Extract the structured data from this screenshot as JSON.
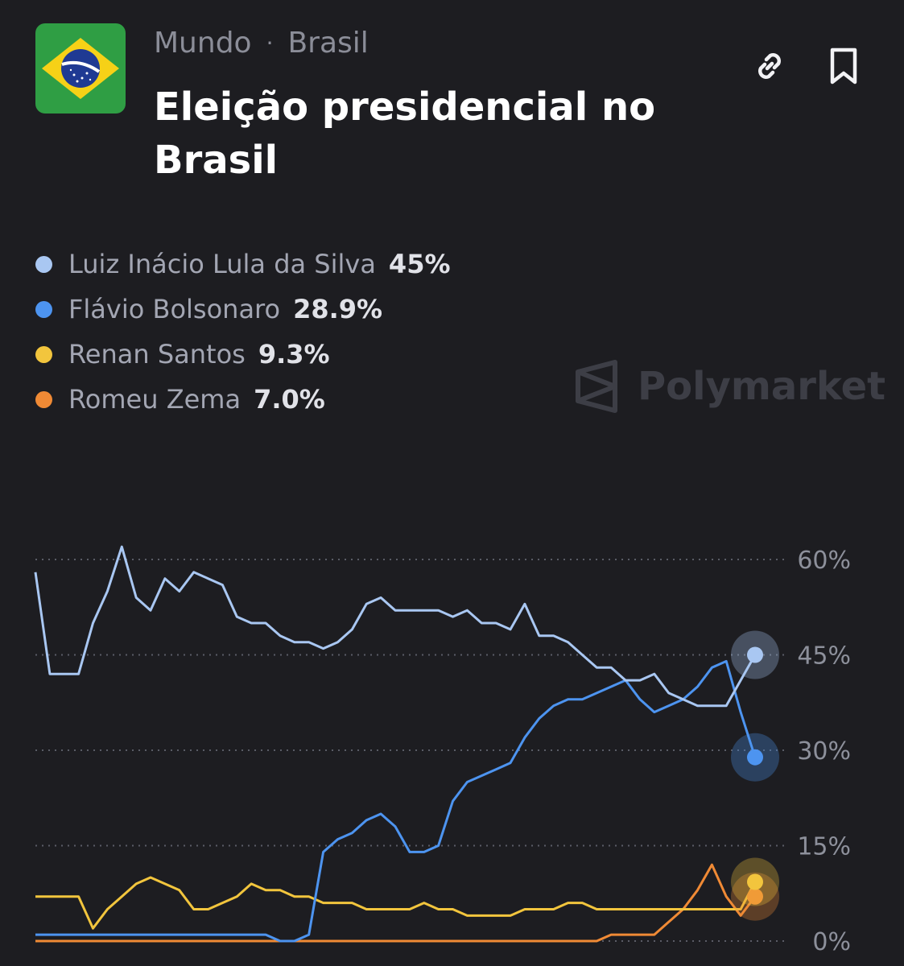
{
  "header": {
    "breadcrumb": [
      "Mundo",
      "Brasil"
    ],
    "breadcrumb_separator": "·",
    "title": "Eleição presidencial no Brasil",
    "flag_icon": "brazil-flag-icon",
    "link_icon": "link-icon",
    "bookmark_icon": "bookmark-icon"
  },
  "legend": [
    {
      "name": "Luiz Inácio Lula da Silva",
      "value": "45%",
      "color": "#a9c7f2"
    },
    {
      "name": "Flávio Bolsonaro",
      "value": "28.9%",
      "color": "#4d94f0"
    },
    {
      "name": "Renan Santos",
      "value": "9.3%",
      "color": "#f2c53d"
    },
    {
      "name": "Romeu Zema",
      "value": "7.0%",
      "color": "#f08a35"
    }
  ],
  "watermark": {
    "text": "Polymarket",
    "icon": "polymarket-logo-icon"
  },
  "chart_data": {
    "type": "line",
    "x": [
      0,
      2,
      4,
      6,
      8,
      10,
      12,
      14,
      16,
      18,
      20,
      22,
      24,
      26,
      28,
      30,
      32,
      34,
      36,
      38,
      40,
      42,
      44,
      46,
      48,
      50,
      52,
      54,
      56,
      58,
      60,
      62,
      64,
      66,
      68,
      70,
      72,
      74,
      76,
      78,
      80,
      82,
      84,
      86,
      88,
      90,
      92,
      94,
      96,
      98,
      100
    ],
    "yticks": [
      "0%",
      "15%",
      "30%",
      "45%",
      "60%"
    ],
    "ytick_values": [
      0,
      15,
      30,
      45,
      60
    ],
    "ylim": [
      0,
      60
    ],
    "grid": "horizontal-dotted",
    "series": [
      {
        "name": "Luiz Inácio Lula da Silva",
        "color": "#a9c7f2",
        "values": [
          58,
          42,
          42,
          42,
          50,
          55,
          62,
          54,
          52,
          57,
          55,
          58,
          57,
          56,
          51,
          50,
          50,
          48,
          47,
          47,
          46,
          47,
          49,
          53,
          54,
          52,
          52,
          52,
          52,
          51,
          52,
          50,
          50,
          49,
          53,
          48,
          48,
          47,
          45,
          43,
          43,
          41,
          41,
          42,
          39,
          38,
          37,
          37,
          37,
          41,
          45
        ]
      },
      {
        "name": "Flávio Bolsonaro",
        "color": "#4d94f0",
        "values": [
          0.5,
          0.5,
          0.5,
          0.5,
          0.5,
          0.5,
          0.5,
          0.5,
          0.5,
          0.5,
          0.5,
          0.5,
          0.5,
          0.5,
          0.5,
          0.5,
          0.5,
          0.5,
          0.5,
          0.5,
          0.5,
          0.5,
          0.5,
          0.5,
          0.5,
          0.5,
          0.5,
          0.5,
          0.5,
          0.5,
          0.5,
          0.5,
          0.5,
          0.5,
          0.5,
          0.5,
          0.5,
          0.5,
          0.5,
          0.5,
          0.5,
          0.5,
          0.5,
          0.5,
          0.5,
          0.5,
          0.5,
          0.5,
          0.5,
          0.5,
          0.5
        ],
        "values_actual": [
          1,
          1,
          1,
          1,
          1,
          1,
          1,
          1,
          1,
          1,
          1,
          1,
          1,
          1,
          1,
          1,
          1,
          0,
          0,
          1,
          14,
          16,
          17,
          19,
          20,
          18,
          14,
          14,
          15,
          22,
          25,
          26,
          27,
          28,
          32,
          35,
          37,
          38,
          38,
          39,
          40,
          41,
          38,
          36,
          37,
          38,
          40,
          43,
          44,
          36,
          28.9
        ]
      },
      {
        "name": "Renan Santos",
        "color": "#f2c53d",
        "values": [
          7,
          7,
          7,
          7,
          2,
          5,
          7,
          9,
          10,
          9,
          8,
          5,
          5,
          6,
          7,
          9,
          8,
          8,
          7,
          7,
          6,
          6,
          6,
          5,
          5,
          5,
          5,
          6,
          5,
          5,
          4,
          4,
          4,
          4,
          5,
          5,
          5,
          6,
          6,
          5,
          5,
          5,
          5,
          5,
          5,
          5,
          5,
          5,
          5,
          5,
          9.3
        ]
      },
      {
        "name": "Romeu Zema",
        "color": "#f08a35",
        "values": [
          0,
          0,
          0,
          0,
          0,
          0,
          0,
          0,
          0,
          0,
          0,
          0,
          0,
          0,
          0,
          0,
          0,
          0,
          0,
          0,
          0,
          0,
          0,
          0,
          0,
          0,
          0,
          0,
          0,
          0,
          0,
          0,
          0,
          0,
          0,
          0,
          0,
          0,
          0,
          0,
          1,
          1,
          1,
          1,
          3,
          5,
          8,
          12,
          7,
          4,
          7.0
        ]
      }
    ]
  }
}
